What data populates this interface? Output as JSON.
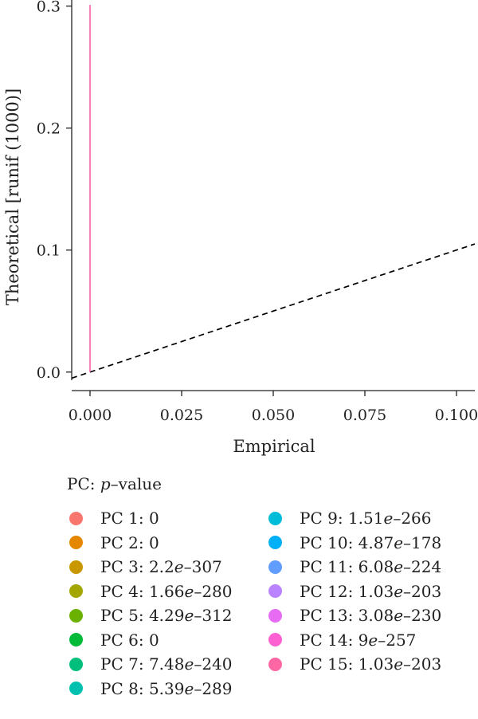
{
  "chart_data": {
    "type": "line",
    "xlabel": "Empirical",
    "ylabel": "Theoretical [runif (1000)]",
    "xlim": [
      -0.005,
      0.105
    ],
    "ylim": [
      -0.008,
      0.305
    ],
    "x_ticks": [
      0.0,
      0.025,
      0.05,
      0.075,
      0.1
    ],
    "x_tick_labels": [
      "0.000",
      "0.025",
      "0.050",
      "0.075",
      "0.100"
    ],
    "y_ticks": [
      0.0,
      0.1,
      0.2,
      0.3
    ],
    "y_tick_labels": [
      "0.0",
      "0.1",
      "0.2",
      "0.3"
    ],
    "grid": false,
    "reference_line": {
      "style": "dashed",
      "color": "#000000",
      "x": [
        -0.005,
        0.105
      ],
      "y": [
        -0.005,
        0.105
      ]
    },
    "series": [
      {
        "name": "PC 15",
        "color": "#f564a9",
        "x": [
          0.0,
          0.0
        ],
        "y": [
          0.0,
          0.301
        ]
      }
    ],
    "legend": {
      "title_prefix": "PC: ",
      "title_italic": "p",
      "title_suffix": "–value",
      "placement": "bottom",
      "items": [
        {
          "label": "PC 1: ",
          "mant": "0",
          "exp": "",
          "color": "#f8766d"
        },
        {
          "label": "PC 2: ",
          "mant": "0",
          "exp": "",
          "color": "#e58700"
        },
        {
          "label": "PC 3: ",
          "mant": "2.2",
          "exp": "–307",
          "color": "#c99800"
        },
        {
          "label": "PC 4: ",
          "mant": "1.66",
          "exp": "–280",
          "color": "#a3a500"
        },
        {
          "label": "PC 5: ",
          "mant": "4.29",
          "exp": "–312",
          "color": "#6bb100"
        },
        {
          "label": "PC 6: ",
          "mant": "0",
          "exp": "",
          "color": "#00ba38"
        },
        {
          "label": "PC 7: ",
          "mant": "7.48",
          "exp": "–240",
          "color": "#00bf7d"
        },
        {
          "label": "PC 8: ",
          "mant": "5.39",
          "exp": "–289",
          "color": "#00c0af"
        },
        {
          "label": "PC 9: ",
          "mant": "1.51",
          "exp": "–266",
          "color": "#00bcd8"
        },
        {
          "label": "PC 10: ",
          "mant": "4.87",
          "exp": "–178",
          "color": "#00b0f6"
        },
        {
          "label": "PC 11: ",
          "mant": "6.08",
          "exp": "–224",
          "color": "#619cff"
        },
        {
          "label": "PC 12: ",
          "mant": "1.03",
          "exp": "–203",
          "color": "#b983ff"
        },
        {
          "label": "PC 13: ",
          "mant": "3.08",
          "exp": "–230",
          "color": "#e76bf3"
        },
        {
          "label": "PC 14: ",
          "mant": "9",
          "exp": "–257",
          "color": "#fd61d1"
        },
        {
          "label": "PC 15: ",
          "mant": "1.03",
          "exp": "–203",
          "color": "#ff67a4"
        }
      ]
    }
  }
}
